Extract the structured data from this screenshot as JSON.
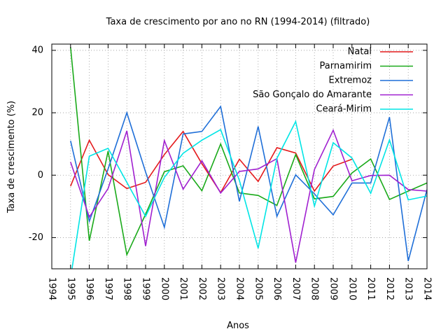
{
  "chart_data": {
    "type": "line",
    "title": "Taxa de crescimento por ano no RN (1994-2014) (filtrado)",
    "xlabel": "Anos",
    "ylabel": "Taxa de crescimento (%)",
    "xlim": [
      1994,
      2014
    ],
    "ylim": [
      -30,
      42
    ],
    "x_ticks": [
      "1994",
      "1995",
      "1996",
      "1997",
      "1998",
      "1999",
      "2000",
      "2001",
      "2002",
      "2003",
      "2004",
      "2005",
      "2006",
      "2007",
      "2008",
      "2009",
      "2010",
      "2011",
      "2012",
      "2013",
      "2014"
    ],
    "y_ticks": [
      40,
      20,
      0,
      -20
    ],
    "y_tick_labels": [
      "40",
      "20",
      "0",
      "-20"
    ],
    "grid": true,
    "legend_position": "top-right",
    "series": [
      {
        "name": "Natal",
        "color": "#e41a1c",
        "x": [
          1995,
          1996,
          1997,
          1998,
          1999,
          2000,
          2001,
          2002,
          2003,
          2004,
          2005,
          2006,
          2007,
          2008,
          2009,
          2010
        ],
        "values": [
          -3.5,
          11.2,
          0.2,
          -4.3,
          -2.3,
          6.6,
          14,
          3.7,
          -5.6,
          5.1,
          -2,
          8.8,
          7.1,
          -5.1,
          2.9,
          5.1
        ]
      },
      {
        "name": "Parnamirim",
        "color": "#1aaa1a",
        "x": [
          1995,
          1996,
          1997,
          1998,
          1999,
          2000,
          2001,
          2002,
          2003,
          2004,
          2005,
          2006,
          2007,
          2008,
          2009,
          2010,
          2011,
          2012,
          2013,
          2014
        ],
        "values": [
          41,
          -21,
          7.7,
          -25.5,
          -12.5,
          1.1,
          3,
          -5,
          10,
          -5.7,
          -6.5,
          -9.7,
          6.6,
          -7.6,
          -6.8,
          0.7,
          5.2,
          -7.8,
          -5.1,
          -2.5
        ]
      },
      {
        "name": "Extremoz",
        "color": "#1f6fd8",
        "x": [
          1995,
          1996,
          1997,
          1998,
          1999,
          2000,
          2001,
          2002,
          2003,
          2004,
          2005,
          2006,
          2007,
          2008,
          2009,
          2010,
          2011,
          2012,
          2013,
          2014
        ],
        "values": [
          11,
          -14.8,
          2,
          20,
          1,
          -16.7,
          13.2,
          14,
          22,
          -8.4,
          15.6,
          -13.2,
          0.1,
          -6,
          -12.7,
          -2.5,
          -2.5,
          18.6,
          -27.5,
          -4.6
        ]
      },
      {
        "name": "São Gonçalo do Amarante",
        "color": "#a020d0",
        "x": [
          1995,
          1996,
          1997,
          1998,
          1999,
          2000,
          2001,
          2002,
          2003,
          2004,
          2005,
          2006,
          2007,
          2008,
          2009,
          2010,
          2011,
          2012,
          2013,
          2014
        ],
        "values": [
          4.2,
          -13.4,
          -4.3,
          14.2,
          -22.7,
          11.1,
          -4.5,
          4.6,
          -5.7,
          1.2,
          2,
          5.3,
          -28,
          1.8,
          14.4,
          -1.8,
          -0.1,
          0,
          -4.6,
          -5.1
        ]
      },
      {
        "name": "Ceará-Mirim",
        "color": "#00e5e5",
        "x": [
          1995,
          1996,
          1997,
          1998,
          1999,
          2000,
          2001,
          2002,
          2003,
          2004,
          2005,
          2006,
          2007,
          2008,
          2009,
          2010,
          2011,
          2012,
          2013,
          2014
        ],
        "values": [
          -33,
          6.1,
          8.6,
          -2.3,
          -13.2,
          -0.7,
          7,
          11.2,
          14.6,
          -1.7,
          -23.4,
          5.4,
          17.2,
          -9.9,
          10.4,
          5.5,
          -5.8,
          11.3,
          -7.9,
          -6.7
        ]
      }
    ]
  }
}
